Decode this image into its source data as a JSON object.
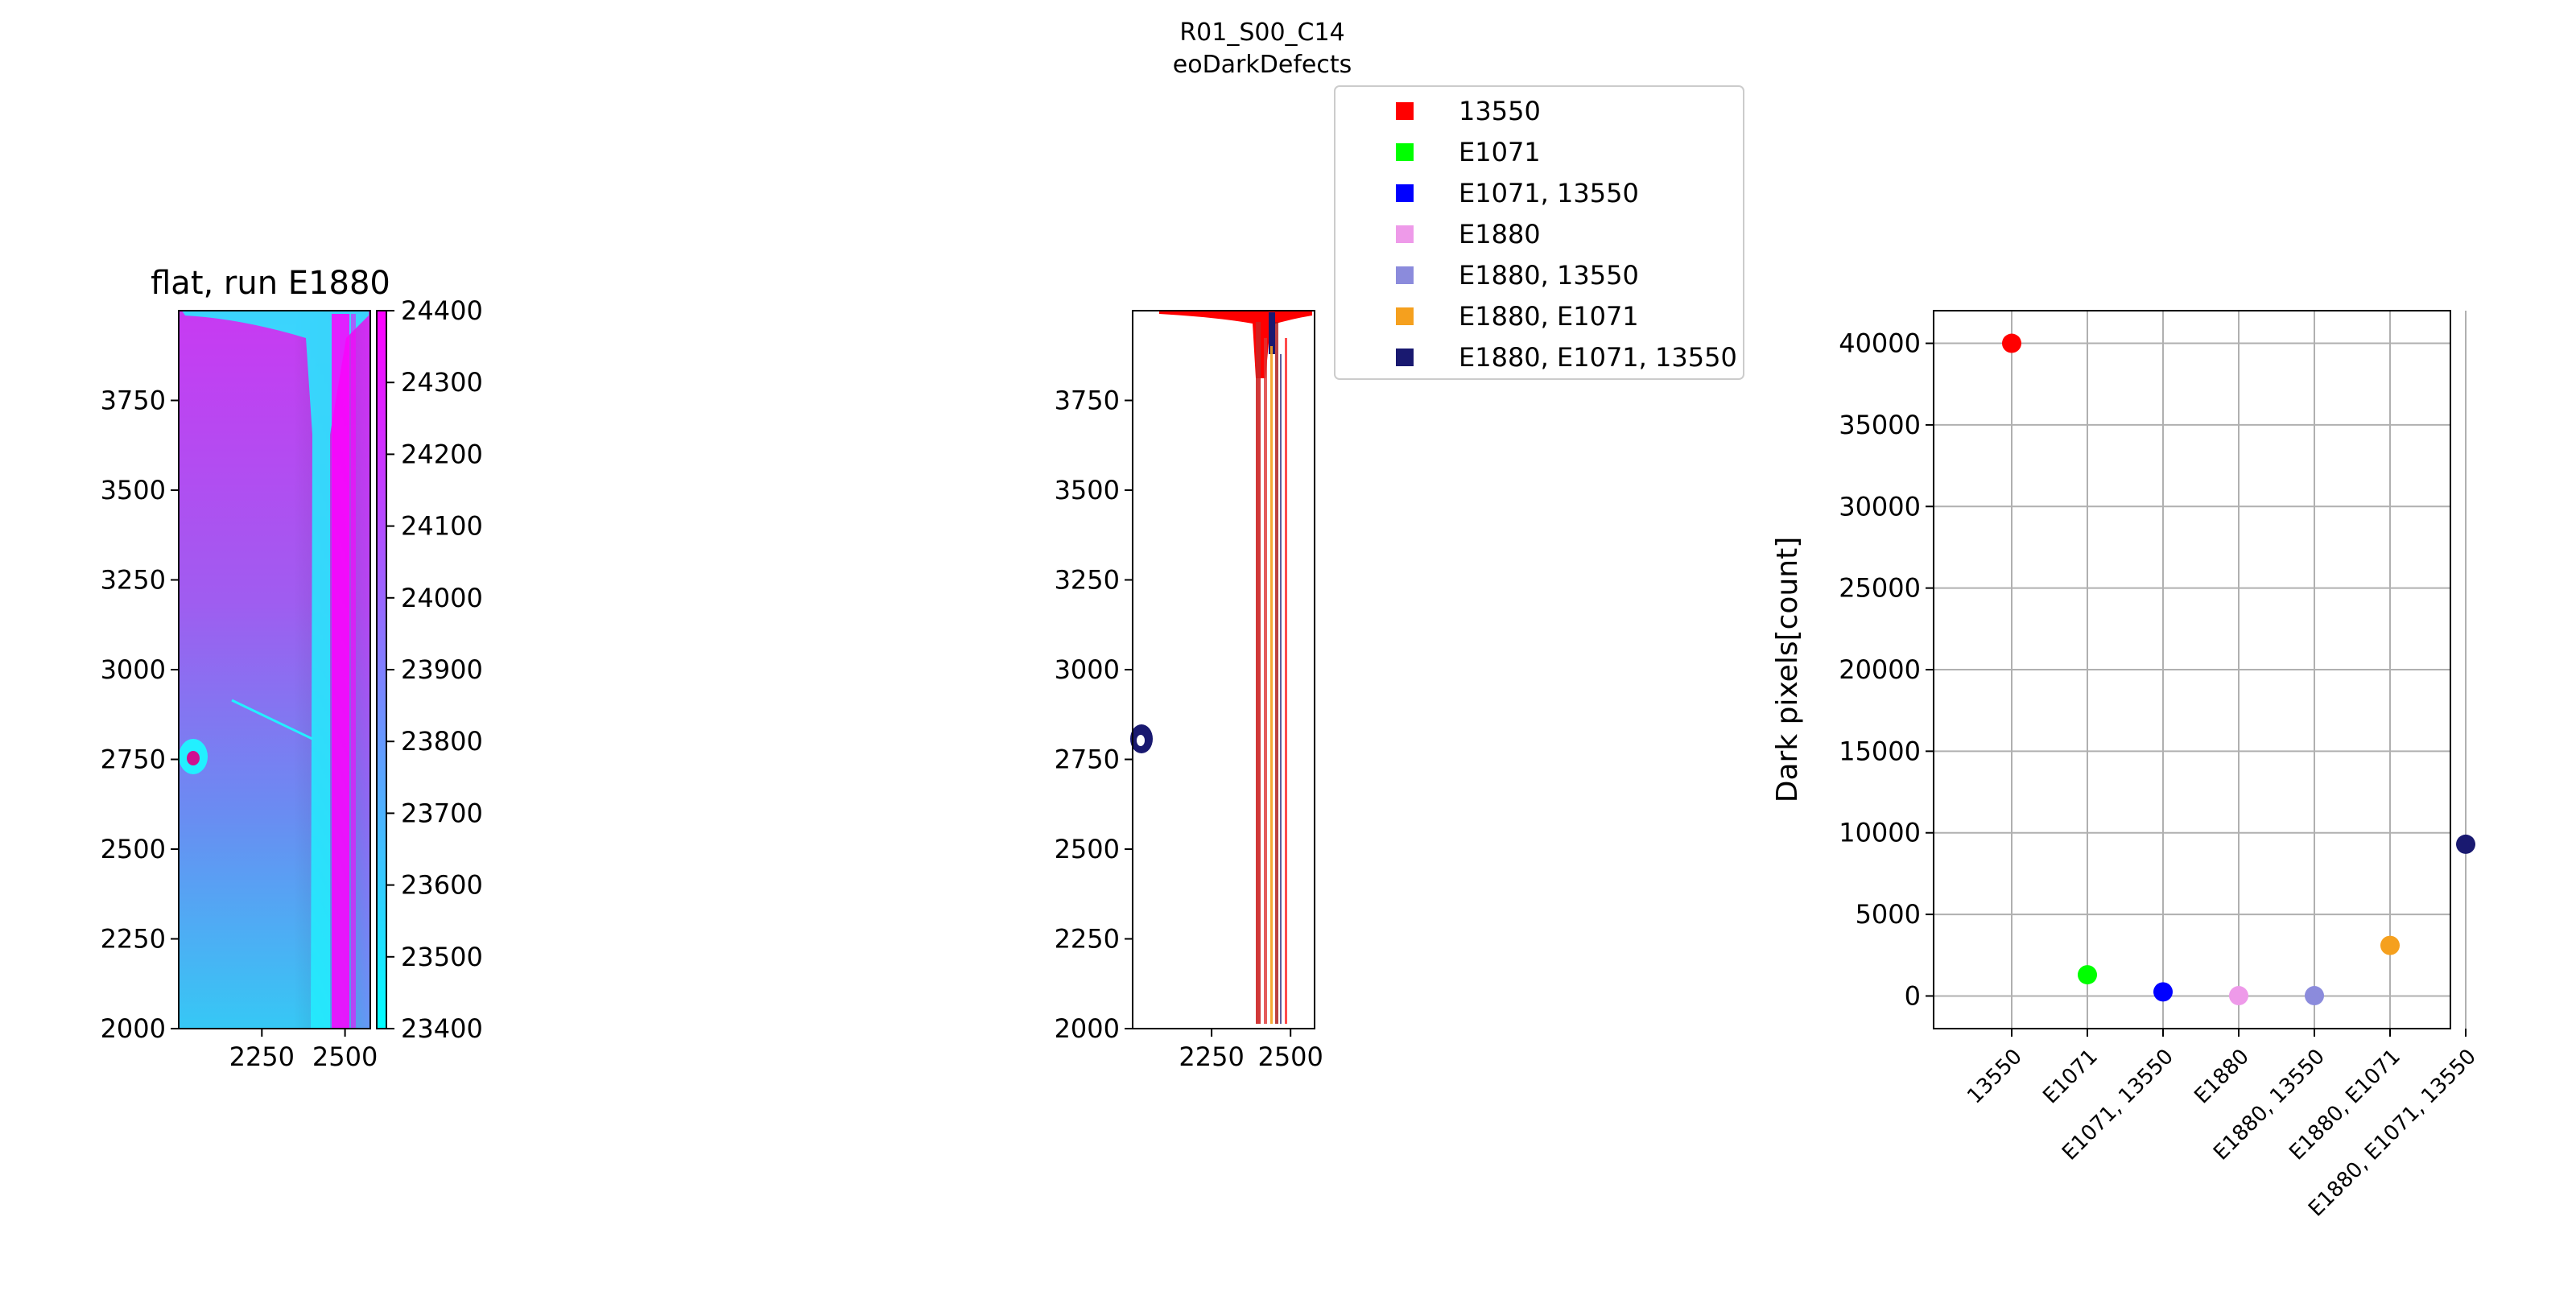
{
  "figure": {
    "suptitle_line1": "R01_S00_C14",
    "suptitle_line2": "eoDarkDefects"
  },
  "panel_flat": {
    "title": "flat, run E1880",
    "y_ticks": [
      2000,
      2250,
      2500,
      2750,
      3000,
      3250,
      3500,
      3750
    ],
    "x_ticks": [
      2250,
      2500
    ],
    "colormap": "cool",
    "colorbar_ticks": [
      23400,
      23500,
      23600,
      23700,
      23800,
      23900,
      24000,
      24100,
      24200,
      24300,
      24400
    ],
    "colorbar_range": [
      23400,
      24400
    ]
  },
  "panel_mask": {
    "y_ticks": [
      2000,
      2250,
      2500,
      2750,
      3000,
      3250,
      3500,
      3750
    ],
    "x_ticks": [
      2250,
      2500
    ]
  },
  "legend": {
    "entries": [
      {
        "label": "13550",
        "color": "#ff0000"
      },
      {
        "label": "E1071",
        "color": "#00ff00"
      },
      {
        "label": "E1071, 13550",
        "color": "#0000ff"
      },
      {
        "label": "E1880",
        "color": "#ee9ae9"
      },
      {
        "label": "E1880, 13550",
        "color": "#8b8bdc"
      },
      {
        "label": "E1880, E1071",
        "color": "#f5a01e"
      },
      {
        "label": "E1880, E1071, 13550",
        "color": "#191970"
      }
    ]
  },
  "chart_data": {
    "type": "scatter",
    "title": "",
    "xlabel": "",
    "ylabel": "Dark pixels[count]",
    "categories": [
      "13550",
      "E1071",
      "E1071, 13550",
      "E1880",
      "E1880, 13550",
      "E1880, E1071",
      "E1880, E1071, 13550"
    ],
    "values": [
      40000,
      1300,
      250,
      20,
      20,
      3100,
      9300
    ],
    "colors": [
      "#ff0000",
      "#00ff00",
      "#0000ff",
      "#ee9ae9",
      "#8b8bdc",
      "#f5a01e",
      "#191970"
    ],
    "y_ticks": [
      0,
      5000,
      10000,
      15000,
      20000,
      25000,
      30000,
      35000,
      40000
    ],
    "ylim": [
      -2000,
      42000
    ],
    "grid": true
  }
}
